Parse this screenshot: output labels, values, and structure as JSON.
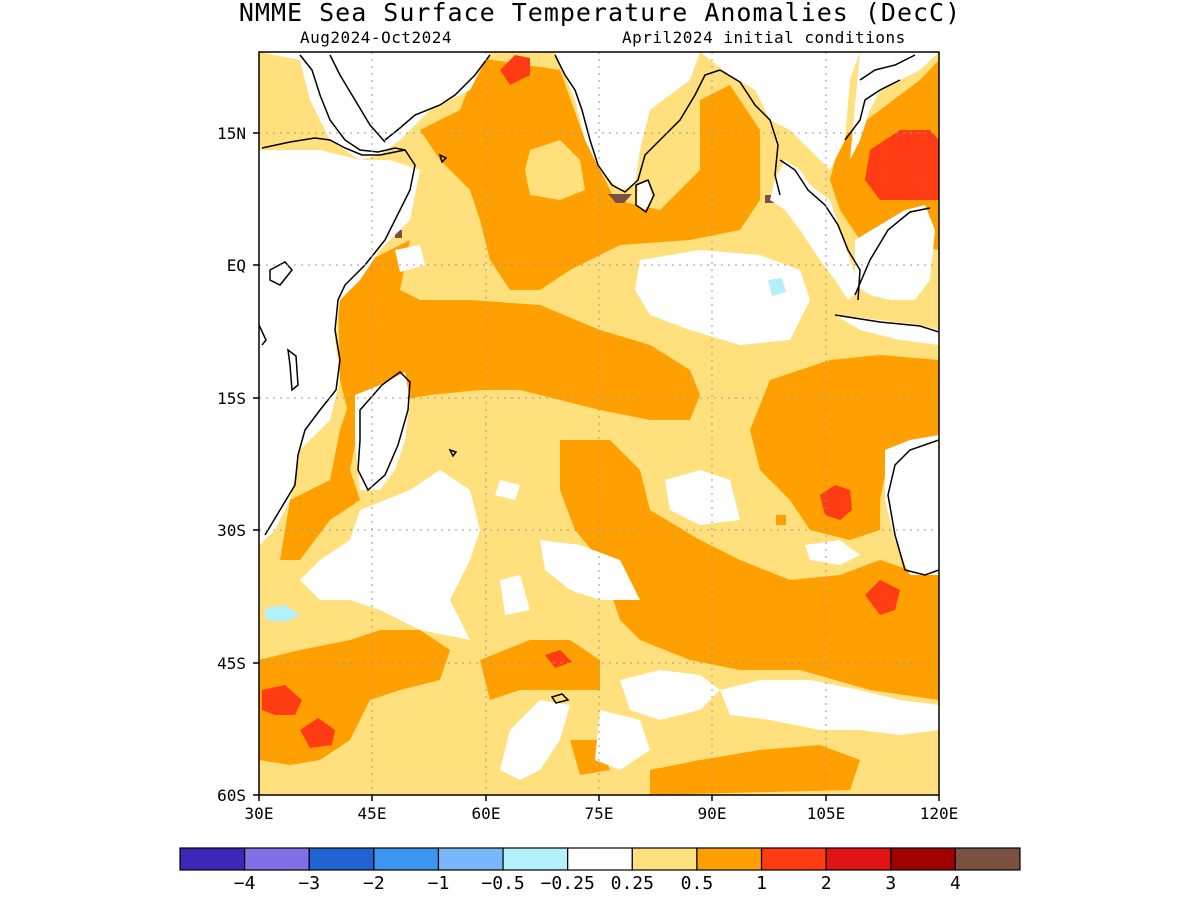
{
  "title": "NMME Sea Surface Temperature Anomalies (DecC)",
  "subtitle_left": "Aug2024-Oct2024",
  "subtitle_right": "April2024 initial conditions",
  "map": {
    "region": "Indian Ocean",
    "lon_range": [
      30,
      120
    ],
    "lat_range": [
      -60,
      25
    ],
    "lon_ticks": [
      "30E",
      "45E",
      "60E",
      "75E",
      "90E",
      "105E",
      "120E"
    ],
    "lat_ticks": [
      "15N",
      "EQ",
      "15S",
      "30S",
      "45S",
      "60S"
    ],
    "grid": "dotted"
  },
  "colorbar": {
    "labels": [
      "−4",
      "−3",
      "−2",
      "−1",
      "−0.5",
      "−0.25",
      "0.25",
      "0.5",
      "1",
      "2",
      "3",
      "4"
    ],
    "colors": [
      "#3a28b8",
      "#8070e8",
      "#1f64d0",
      "#3c96f0",
      "#78b8f8",
      "#b4f0fa",
      "#ffffff",
      "#ffe07c",
      "#ffa000",
      "#ff3c14",
      "#e01414",
      "#a00000",
      "#7a5040"
    ]
  }
}
